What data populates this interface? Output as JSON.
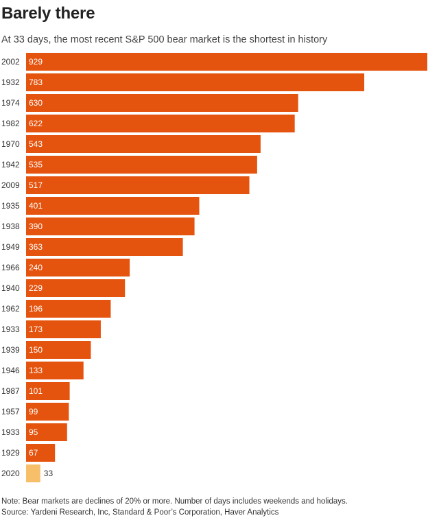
{
  "header": {
    "title": "Barely there",
    "subtitle": "At 33 days, the most recent S&P 500 bear market is the shortest in history"
  },
  "footer": {
    "note": "Note: Bear markets are declines of 20% or more. Number of days includes weekends and holidays.",
    "source": "Source: Yardeni Research, Inc, Standard & Poor’s Corporation, Haver Analytics"
  },
  "colors": {
    "bar": "#e5540f",
    "highlight_bar": "#f8bf6a",
    "label_inside": "#ffffff",
    "label_outside": "#333333"
  },
  "chart_data": {
    "type": "bar",
    "orientation": "horizontal",
    "title": "Barely there",
    "subtitle": "At 33 days, the most recent S&P 500 bear market is the shortest in history",
    "xlabel": "",
    "ylabel": "",
    "xlim": [
      0,
      929
    ],
    "grid": false,
    "legend": "none",
    "categories": [
      "2002",
      "1932",
      "1974",
      "1982",
      "1970",
      "1942",
      "2009",
      "1935",
      "1938",
      "1949",
      "1966",
      "1940",
      "1962",
      "1933",
      "1939",
      "1946",
      "1987",
      "1957",
      "1933",
      "1929",
      "2020"
    ],
    "values": [
      929,
      783,
      630,
      622,
      543,
      535,
      517,
      401,
      390,
      363,
      240,
      229,
      196,
      173,
      150,
      133,
      101,
      99,
      95,
      67,
      33
    ],
    "highlight_index": 20
  }
}
